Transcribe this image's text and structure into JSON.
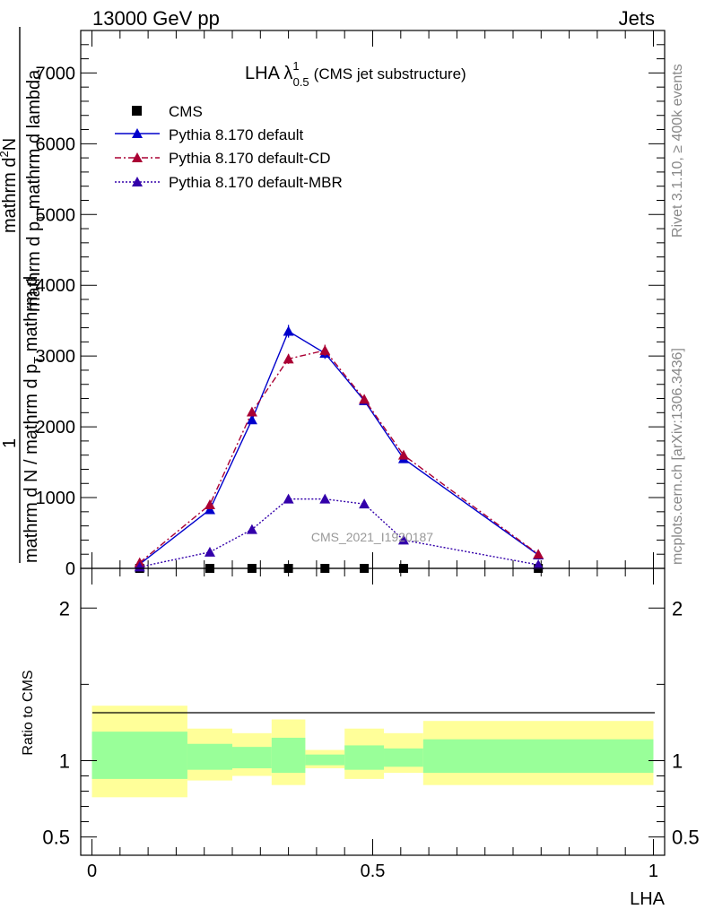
{
  "header": {
    "left": "13000 GeV pp",
    "right": "Jets"
  },
  "side_text": {
    "rivet": "Rivet 3.1.10, ≥ 400k events",
    "mcplots": "mcplots.cern.ch [arXiv:1306.3436]"
  },
  "watermark": "CMS_2021_I1920187",
  "upper_ylabel": {
    "line1": "1",
    "line2": "mathrm d N / mathrm d p",
    "line2_sub": "T",
    "line2_tail": " mathrm d",
    "line3": "mathrm d",
    "line3_sup": "2",
    "line3_tail": "N",
    "line4": "mathrm d p",
    "line4_sub": "T",
    "line4_tail": " mathrm d lambda"
  },
  "colors": {
    "cms": "#000000",
    "default": "#0000cc",
    "default_cd": "#aa0033",
    "default_mbr": "#3300aa",
    "band_outer": "#ffff99",
    "band_inner": "#99ff99"
  },
  "chart_data": [
    {
      "type": "line",
      "title": "LHA λ",
      "title_sup": "1",
      "title_sub": "0.5",
      "title_tail": "(CMS jet substructure)",
      "xlabel": "",
      "ylabel": "",
      "xlim": [
        -0.02,
        1.02
      ],
      "ylim": [
        0,
        7600
      ],
      "yticks": [
        0,
        1000,
        2000,
        3000,
        4000,
        5000,
        6000,
        7000
      ],
      "ytick_labels": [
        "0",
        "1000",
        "2000",
        "3000",
        "4000",
        "5000",
        "6000",
        "7000"
      ],
      "legend_position": "top-left",
      "series": [
        {
          "name": "CMS",
          "key": "cms",
          "marker": "square",
          "line": "none",
          "x": [
            0.085,
            0.21,
            0.285,
            0.35,
            0.415,
            0.485,
            0.555,
            0.795
          ],
          "y": [
            0,
            0,
            0,
            0,
            0,
            0,
            0,
            0
          ]
        },
        {
          "name": "Pythia 8.170 default",
          "key": "default",
          "marker": "triangle",
          "line": "solid",
          "x": [
            0.085,
            0.21,
            0.285,
            0.35,
            0.415,
            0.485,
            0.555,
            0.795
          ],
          "y": [
            60,
            830,
            2100,
            3350,
            3040,
            2370,
            1550,
            190
          ],
          "err": [
            0,
            30,
            50,
            90,
            80,
            60,
            40,
            0
          ]
        },
        {
          "name": "Pythia 8.170 default-CD",
          "key": "default_cd",
          "marker": "triangle",
          "line": "dashdot",
          "x": [
            0.085,
            0.21,
            0.285,
            0.35,
            0.415,
            0.485,
            0.555,
            0.795
          ],
          "y": [
            80,
            900,
            2210,
            2960,
            3080,
            2390,
            1600,
            200
          ],
          "err": [
            0,
            30,
            60,
            70,
            80,
            60,
            40,
            0
          ]
        },
        {
          "name": "Pythia 8.170 default-MBR",
          "key": "default_mbr",
          "marker": "triangle",
          "line": "dotted",
          "x": [
            0.085,
            0.21,
            0.285,
            0.35,
            0.415,
            0.485,
            0.555,
            0.795
          ],
          "y": [
            20,
            230,
            550,
            980,
            980,
            910,
            400,
            50
          ],
          "err": [
            0,
            10,
            20,
            30,
            30,
            30,
            20,
            0
          ]
        }
      ]
    },
    {
      "type": "area",
      "xlabel": "LHA",
      "ylabel": "Ratio to CMS",
      "xlim": [
        -0.02,
        1.02
      ],
      "ylim": [
        0.38,
        2.26
      ],
      "xticks": [
        0,
        0.5,
        1
      ],
      "xtick_labels": [
        "0",
        "0.5",
        "1"
      ],
      "yticks": [
        0.5,
        1,
        2
      ],
      "ytick_labels": [
        "0.5",
        "1",
        "2"
      ],
      "reference_line": 1,
      "bins": [
        {
          "x0": 0.0,
          "x1": 0.17,
          "outer": [
            0.76,
            1.36
          ],
          "inner": [
            0.88,
            1.19
          ]
        },
        {
          "x0": 0.17,
          "x1": 0.25,
          "outer": [
            0.87,
            1.21
          ],
          "inner": [
            0.94,
            1.11
          ]
        },
        {
          "x0": 0.25,
          "x1": 0.32,
          "outer": [
            0.9,
            1.18
          ],
          "inner": [
            0.95,
            1.09
          ]
        },
        {
          "x0": 0.32,
          "x1": 0.38,
          "outer": [
            0.84,
            1.27
          ],
          "inner": [
            0.92,
            1.15
          ]
        },
        {
          "x0": 0.38,
          "x1": 0.45,
          "outer": [
            0.95,
            1.07
          ],
          "inner": [
            0.97,
            1.04
          ]
        },
        {
          "x0": 0.45,
          "x1": 0.52,
          "outer": [
            0.88,
            1.21
          ],
          "inner": [
            0.94,
            1.1
          ]
        },
        {
          "x0": 0.52,
          "x1": 0.59,
          "outer": [
            0.92,
            1.18
          ],
          "inner": [
            0.96,
            1.08
          ]
        },
        {
          "x0": 0.59,
          "x1": 1.0,
          "outer": [
            0.84,
            1.26
          ],
          "inner": [
            0.92,
            1.14
          ]
        }
      ]
    }
  ]
}
